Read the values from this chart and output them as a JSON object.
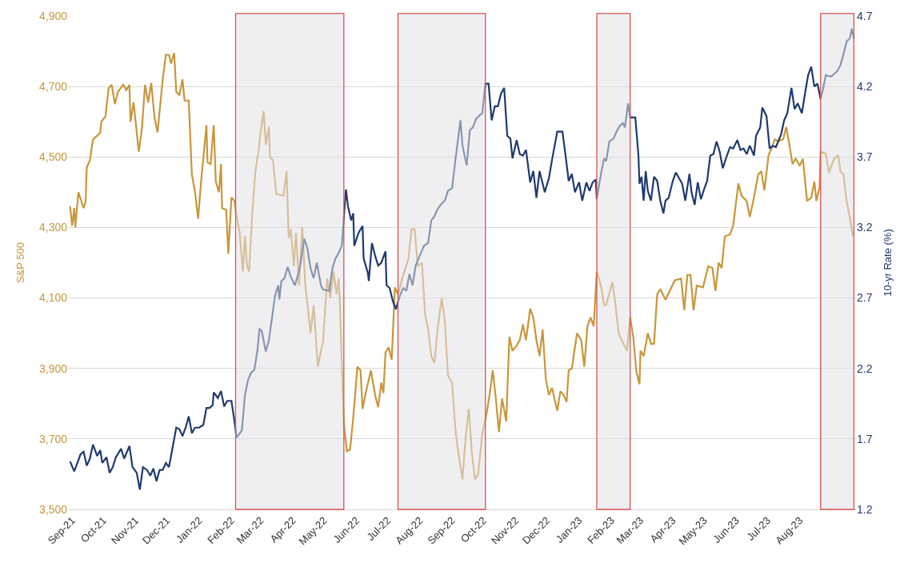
{
  "chart_data": {
    "type": "line",
    "ylabel": "S&P 500",
    "y2label": "10-yr Rate (%)",
    "xlim": [
      "2021-08-28",
      "2023-09-24"
    ],
    "xticks": [
      {
        "value": "2021-09-01",
        "label": "Sep-21"
      },
      {
        "value": "2021-10-01",
        "label": "Oct-21"
      },
      {
        "value": "2021-11-01",
        "label": "Nov-21"
      },
      {
        "value": "2021-12-01",
        "label": "Dec-21"
      },
      {
        "value": "2022-01-01",
        "label": "Jan-22"
      },
      {
        "value": "2022-02-01",
        "label": "Feb-22"
      },
      {
        "value": "2022-03-01",
        "label": "Mar-22"
      },
      {
        "value": "2022-04-01",
        "label": "Apr-22"
      },
      {
        "value": "2022-05-01",
        "label": "May-22"
      },
      {
        "value": "2022-06-01",
        "label": "Jun-22"
      },
      {
        "value": "2022-07-01",
        "label": "Jul-22"
      },
      {
        "value": "2022-08-01",
        "label": "Aug-22"
      },
      {
        "value": "2022-09-01",
        "label": "Sep-22"
      },
      {
        "value": "2022-10-01",
        "label": "Oct-22"
      },
      {
        "value": "2022-11-01",
        "label": "Nov-22"
      },
      {
        "value": "2022-12-01",
        "label": "Dec-22"
      },
      {
        "value": "2023-01-01",
        "label": "Jan-23"
      },
      {
        "value": "2023-02-01",
        "label": "Feb-23"
      },
      {
        "value": "2023-03-01",
        "label": "Mar-23"
      },
      {
        "value": "2023-04-01",
        "label": "Apr-23"
      },
      {
        "value": "2023-05-01",
        "label": "May-23"
      },
      {
        "value": "2023-06-01",
        "label": "Jun-23"
      },
      {
        "value": "2023-07-01",
        "label": "Jul-23"
      },
      {
        "value": "2023-08-01",
        "label": "Aug-23"
      }
    ],
    "ylim": [
      3500,
      4900
    ],
    "yticks": [
      {
        "value": 3500,
        "label": "3,500"
      },
      {
        "value": 3700,
        "label": "3,700"
      },
      {
        "value": 3900,
        "label": "3,900"
      },
      {
        "value": 4100,
        "label": "4,100"
      },
      {
        "value": 4300,
        "label": "4,300"
      },
      {
        "value": 4500,
        "label": "4,500"
      },
      {
        "value": 4700,
        "label": "4,700"
      },
      {
        "value": 4900,
        "label": "4,900"
      }
    ],
    "y2lim": [
      1.2,
      4.7
    ],
    "y2ticks": [
      1.2,
      1.7,
      2.2,
      2.7,
      3.2,
      3.7,
      4.2,
      4.7
    ],
    "grid": "y",
    "line_style": "solid",
    "bands": [
      {
        "axis": "x",
        "from": "2022-02-05",
        "to": "2022-05-20",
        "color": "#d9534f"
      },
      {
        "axis": "x",
        "from": "2022-07-11",
        "to": "2022-10-03",
        "color": "#d9534f"
      },
      {
        "axis": "x",
        "from": "2023-01-18",
        "to": "2023-02-19",
        "color": "#d9534f"
      },
      {
        "axis": "x",
        "from": "2023-08-21",
        "to": "2023-09-22",
        "color": "#d9534f"
      }
    ],
    "series": [
      {
        "color": "#c9963a",
        "x": [
          "2021-08-30",
          "2021-09-01",
          "2021-09-03",
          "2021-09-04",
          "2021-09-07",
          "2021-09-12",
          "2021-09-14",
          "2021-09-15",
          "2021-09-18",
          "2021-09-21",
          "2021-09-25",
          "2021-09-28",
          "2021-09-29",
          "2021-10-03",
          "2021-10-06",
          "2021-10-09",
          "2021-10-12",
          "2021-10-15",
          "2021-10-20",
          "2021-10-23",
          "2021-10-26",
          "2021-10-27",
          "2021-10-30",
          "2021-11-04",
          "2021-11-07",
          "2021-11-10",
          "2021-11-13",
          "2021-11-16",
          "2021-11-19",
          "2021-11-22",
          "2021-11-27",
          "2021-11-30",
          "2021-12-03",
          "2021-12-05",
          "2021-12-08",
          "2021-12-10",
          "2021-12-13",
          "2021-12-16",
          "2021-12-18",
          "2021-12-22",
          "2021-12-25",
          "2021-12-28",
          "2021-12-31",
          "2022-01-03",
          "2022-01-08",
          "2022-01-09",
          "2022-01-12",
          "2022-01-15",
          "2022-01-17",
          "2022-01-20",
          "2022-01-22",
          "2022-01-23",
          "2022-01-27",
          "2022-01-29",
          "2022-02-01",
          "2022-02-04",
          "2022-02-06",
          "2022-02-09",
          "2022-02-12",
          "2022-02-14",
          "2022-02-16",
          "2022-02-18",
          "2022-02-21",
          "2022-02-24",
          "2022-02-27",
          "2022-03-01",
          "2022-03-04",
          "2022-03-06",
          "2022-03-09",
          "2022-03-10",
          "2022-03-13",
          "2022-03-16",
          "2022-03-23",
          "2022-03-26",
          "2022-03-28",
          "2022-03-30",
          "2022-04-02",
          "2022-04-04",
          "2022-04-07",
          "2022-04-10",
          "2022-04-13",
          "2022-04-18",
          "2022-04-21",
          "2022-04-25",
          "2022-04-28",
          "2022-04-30",
          "2022-05-04",
          "2022-05-07",
          "2022-05-10",
          "2022-05-13",
          "2022-05-15",
          "2022-05-16",
          "2022-05-20",
          "2022-05-23",
          "2022-05-26",
          "2022-05-29",
          "2022-06-02",
          "2022-06-05",
          "2022-06-07",
          "2022-06-10",
          "2022-06-15",
          "2022-06-19",
          "2022-06-22",
          "2022-06-25",
          "2022-06-27",
          "2022-06-29",
          "2022-07-02",
          "2022-07-05",
          "2022-07-08",
          "2022-07-11",
          "2022-07-16",
          "2022-07-21",
          "2022-07-24",
          "2022-07-27",
          "2022-07-30",
          "2022-08-03",
          "2022-08-06",
          "2022-08-09",
          "2022-08-12",
          "2022-08-15",
          "2022-08-18",
          "2022-08-22",
          "2022-08-25",
          "2022-08-28",
          "2022-09-01",
          "2022-09-04",
          "2022-09-07",
          "2022-09-11",
          "2022-09-14",
          "2022-09-17",
          "2022-09-20",
          "2022-09-23",
          "2022-09-26",
          "2022-09-30",
          "2022-10-04",
          "2022-10-07",
          "2022-10-10",
          "2022-10-13",
          "2022-10-16",
          "2022-10-19",
          "2022-10-23",
          "2022-10-26",
          "2022-10-29",
          "2022-11-02",
          "2022-11-05",
          "2022-11-08",
          "2022-11-11",
          "2022-11-15",
          "2022-11-18",
          "2022-11-21",
          "2022-11-24",
          "2022-11-27",
          "2022-11-30",
          "2022-12-03",
          "2022-12-06",
          "2022-12-11",
          "2022-12-14",
          "2022-12-17",
          "2022-12-20",
          "2022-12-22",
          "2022-12-25",
          "2022-12-30",
          "2023-01-03",
          "2023-01-06",
          "2023-01-09",
          "2023-01-12",
          "2023-01-15",
          "2023-01-18",
          "2023-01-22",
          "2023-01-25",
          "2023-01-27",
          "2023-02-02",
          "2023-02-05",
          "2023-02-08",
          "2023-02-11",
          "2023-02-16",
          "2023-02-19",
          "2023-02-22",
          "2023-02-25",
          "2023-02-28",
          "2023-03-01",
          "2023-03-04",
          "2023-03-08",
          "2023-03-11",
          "2023-03-14",
          "2023-03-17",
          "2023-03-20",
          "2023-03-25",
          "2023-03-29",
          "2023-04-03",
          "2023-04-09",
          "2023-04-12",
          "2023-04-15",
          "2023-04-18",
          "2023-04-21",
          "2023-04-24",
          "2023-04-30",
          "2023-05-05",
          "2023-05-09",
          "2023-05-12",
          "2023-05-15",
          "2023-05-18",
          "2023-05-21",
          "2023-05-26",
          "2023-05-29",
          "2023-06-03",
          "2023-06-06",
          "2023-06-11",
          "2023-06-14",
          "2023-06-18",
          "2023-06-22",
          "2023-06-25",
          "2023-06-28",
          "2023-07-02",
          "2023-07-05",
          "2023-07-08",
          "2023-07-11",
          "2023-07-16",
          "2023-07-19",
          "2023-07-22",
          "2023-07-25",
          "2023-07-28",
          "2023-08-01",
          "2023-08-04",
          "2023-08-08",
          "2023-08-12",
          "2023-08-15",
          "2023-08-17",
          "2023-08-20",
          "2023-08-21",
          "2023-08-26",
          "2023-08-29",
          "2023-09-03",
          "2023-09-07",
          "2023-09-09",
          "2023-09-12",
          "2023-09-15",
          "2023-09-18",
          "2023-09-21"
        ],
        "values": [
          4360,
          4305,
          4355,
          4300,
          4400,
          4355,
          4375,
          4470,
          4490,
          4550,
          4560,
          4570,
          4600,
          4615,
          4695,
          4705,
          4650,
          4685,
          4705,
          4690,
          4705,
          4600,
          4655,
          4515,
          4580,
          4705,
          4655,
          4710,
          4615,
          4570,
          4720,
          4790,
          4790,
          4765,
          4795,
          4685,
          4675,
          4720,
          4660,
          4660,
          4450,
          4400,
          4325,
          4435,
          4590,
          4485,
          4480,
          4590,
          4430,
          4400,
          4480,
          4355,
          4350,
          4225,
          4385,
          4375,
          4330,
          4285,
          4175,
          4275,
          4190,
          4175,
          4340,
          4460,
          4515,
          4570,
          4630,
          4535,
          4585,
          4500,
          4490,
          4395,
          4390,
          4460,
          4270,
          4295,
          4190,
          4285,
          4135,
          4300,
          4135,
          4000,
          4080,
          3905,
          3950,
          3975,
          4155,
          4100,
          4175,
          4110,
          4155,
          4100,
          3740,
          3665,
          3670,
          3760,
          3905,
          3895,
          3785,
          3830,
          3895,
          3825,
          3790,
          3860,
          3830,
          3945,
          3960,
          3925,
          4130,
          4110,
          4165,
          4210,
          4295,
          4295,
          4190,
          4200,
          4055,
          4010,
          3935,
          3915,
          4010,
          4100,
          4035,
          3880,
          3860,
          3730,
          3660,
          3585,
          3705,
          3785,
          3660,
          3585,
          3600,
          3715,
          3770,
          3825,
          3895,
          3815,
          3720,
          3815,
          3750,
          3990,
          3950,
          3965,
          3980,
          4025,
          3980,
          4070,
          4045,
          3980,
          3935,
          4010,
          3870,
          3825,
          3845,
          3780,
          3835,
          3825,
          3805,
          3895,
          3900,
          4000,
          3980,
          3905,
          4020,
          4045,
          4020,
          4175,
          4135,
          4080,
          4080,
          4145,
          4080,
          4000,
          3980,
          3950,
          4045,
          3990,
          3890,
          3855,
          3950,
          3935,
          4000,
          3970,
          3970,
          4110,
          4125,
          4095,
          4120,
          4150,
          4155,
          4065,
          4165,
          4165,
          4065,
          4135,
          4130,
          4190,
          4185,
          4120,
          4200,
          4185,
          4275,
          4280,
          4305,
          4425,
          4390,
          4375,
          4330,
          4385,
          4450,
          4460,
          4405,
          4505,
          4525,
          4550,
          4545,
          4550,
          4585,
          4535,
          4480,
          4495,
          4475,
          4495,
          4375,
          4385,
          4430,
          4375,
          4415,
          4515,
          4510,
          4455,
          4495,
          4505,
          4460,
          4450,
          4375,
          4330,
          4275
        ]
      },
      {
        "axis": "y2",
        "color": "#1f3a6e",
        "x": [
          "2021-08-30",
          "2021-09-03",
          "2021-09-06",
          "2021-09-09",
          "2021-09-12",
          "2021-09-15",
          "2021-09-18",
          "2021-09-21",
          "2021-09-25",
          "2021-09-28",
          "2021-09-30",
          "2021-10-04",
          "2021-10-07",
          "2021-10-10",
          "2021-10-13",
          "2021-10-18",
          "2021-10-21",
          "2021-10-26",
          "2021-10-29",
          "2021-11-02",
          "2021-11-05",
          "2021-11-08",
          "2021-11-12",
          "2021-11-15",
          "2021-11-18",
          "2021-11-21",
          "2021-11-24",
          "2021-11-27",
          "2021-11-30",
          "2021-12-03",
          "2021-12-06",
          "2021-12-10",
          "2021-12-13",
          "2021-12-16",
          "2021-12-19",
          "2021-12-22",
          "2021-12-25",
          "2021-12-28",
          "2022-01-01",
          "2022-01-05",
          "2022-01-08",
          "2022-01-11",
          "2022-01-14",
          "2022-01-15",
          "2022-01-19",
          "2022-01-22",
          "2022-01-25",
          "2022-01-28",
          "2022-02-01",
          "2022-02-04",
          "2022-02-06",
          "2022-02-09",
          "2022-02-11",
          "2022-02-14",
          "2022-02-17",
          "2022-02-20",
          "2022-02-23",
          "2022-02-26",
          "2022-02-28",
          "2022-03-02",
          "2022-03-06",
          "2022-03-09",
          "2022-03-12",
          "2022-03-15",
          "2022-03-18",
          "2022-03-19",
          "2022-03-21",
          "2022-03-24",
          "2022-03-27",
          "2022-03-30",
          "2022-04-03",
          "2022-04-05",
          "2022-04-08",
          "2022-04-12",
          "2022-04-15",
          "2022-04-18",
          "2022-04-21",
          "2022-04-24",
          "2022-04-28",
          "2022-04-30",
          "2022-05-06",
          "2022-05-09",
          "2022-05-12",
          "2022-05-15",
          "2022-05-18",
          "2022-05-22",
          "2022-05-24",
          "2022-05-27",
          "2022-05-29",
          "2022-05-30",
          "2022-06-03",
          "2022-06-07",
          "2022-06-08",
          "2022-06-12",
          "2022-06-13",
          "2022-06-16",
          "2022-06-19",
          "2022-06-22",
          "2022-06-25",
          "2022-06-29",
          "2022-06-30",
          "2022-07-03",
          "2022-07-06",
          "2022-07-09",
          "2022-07-13",
          "2022-07-16",
          "2022-07-19",
          "2022-07-22",
          "2022-07-25",
          "2022-07-28",
          "2022-08-01",
          "2022-08-05",
          "2022-08-09",
          "2022-08-12",
          "2022-08-15",
          "2022-08-18",
          "2022-08-22",
          "2022-08-25",
          "2022-08-28",
          "2022-09-01",
          "2022-09-04",
          "2022-09-09",
          "2022-09-11",
          "2022-09-15",
          "2022-09-18",
          "2022-09-21",
          "2022-09-24",
          "2022-09-28",
          "2022-09-30",
          "2022-10-03",
          "2022-10-06",
          "2022-10-09",
          "2022-10-12",
          "2022-10-15",
          "2022-10-18",
          "2022-10-21",
          "2022-10-24",
          "2022-10-27",
          "2022-10-29",
          "2022-11-02",
          "2022-11-05",
          "2022-11-08",
          "2022-11-11",
          "2022-11-15",
          "2022-11-18",
          "2022-11-21",
          "2022-11-24",
          "2022-11-29",
          "2022-12-03",
          "2022-12-06",
          "2022-12-11",
          "2022-12-16",
          "2022-12-19",
          "2022-12-22",
          "2022-12-25",
          "2022-12-28",
          "2023-01-01",
          "2023-01-04",
          "2023-01-08",
          "2023-01-11",
          "2023-01-14",
          "2023-01-17",
          "2023-01-18",
          "2023-01-22",
          "2023-01-25",
          "2023-01-27",
          "2023-01-30",
          "2023-02-03",
          "2023-02-06",
          "2023-02-09",
          "2023-02-12",
          "2023-02-14",
          "2023-02-17",
          "2023-02-19",
          "2023-02-24",
          "2023-02-27",
          "2023-02-28",
          "2023-03-02",
          "2023-03-04",
          "2023-03-06",
          "2023-03-08",
          "2023-03-11",
          "2023-03-14",
          "2023-03-17",
          "2023-03-20",
          "2023-03-23",
          "2023-03-25",
          "2023-03-28",
          "2023-04-01",
          "2023-04-04",
          "2023-04-07",
          "2023-04-10",
          "2023-04-13",
          "2023-04-17",
          "2023-04-19",
          "2023-04-22",
          "2023-04-25",
          "2023-04-28",
          "2023-05-01",
          "2023-05-04",
          "2023-05-07",
          "2023-05-10",
          "2023-05-13",
          "2023-05-16",
          "2023-05-19",
          "2023-05-23",
          "2023-05-26",
          "2023-05-29",
          "2023-06-02",
          "2023-06-05",
          "2023-06-08",
          "2023-06-11",
          "2023-06-14",
          "2023-06-18",
          "2023-06-20",
          "2023-06-24",
          "2023-06-26",
          "2023-06-30",
          "2023-07-03",
          "2023-07-06",
          "2023-07-09",
          "2023-07-14",
          "2023-07-17",
          "2023-07-20",
          "2023-07-24",
          "2023-07-27",
          "2023-07-30",
          "2023-08-03",
          "2023-08-06",
          "2023-08-09",
          "2023-08-12",
          "2023-08-15",
          "2023-08-18",
          "2023-08-21",
          "2023-08-23",
          "2023-08-26",
          "2023-08-31",
          "2023-09-06",
          "2023-09-09",
          "2023-09-12",
          "2023-09-15",
          "2023-09-18",
          "2023-09-20",
          "2023-09-22"
        ],
        "values": [
          1.54,
          1.47,
          1.53,
          1.59,
          1.61,
          1.51,
          1.56,
          1.66,
          1.58,
          1.62,
          1.53,
          1.57,
          1.46,
          1.5,
          1.57,
          1.63,
          1.56,
          1.65,
          1.5,
          1.46,
          1.34,
          1.5,
          1.48,
          1.44,
          1.49,
          1.4,
          1.48,
          1.48,
          1.53,
          1.5,
          1.62,
          1.78,
          1.77,
          1.72,
          1.78,
          1.86,
          1.74,
          1.78,
          1.78,
          1.8,
          1.92,
          1.92,
          1.94,
          2.03,
          1.99,
          2.04,
          1.93,
          1.97,
          1.97,
          1.82,
          1.71,
          1.74,
          1.76,
          2.01,
          2.12,
          2.17,
          2.19,
          2.33,
          2.48,
          2.47,
          2.32,
          2.4,
          2.56,
          2.72,
          2.79,
          2.69,
          2.82,
          2.84,
          2.92,
          2.85,
          2.79,
          2.84,
          2.93,
          3.12,
          3.05,
          2.91,
          2.84,
          2.95,
          2.79,
          2.76,
          2.75,
          2.91,
          2.98,
          3.02,
          3.07,
          3.47,
          3.35,
          3.25,
          3.3,
          3.07,
          3.16,
          3.21,
          2.98,
          2.88,
          2.82,
          3.09,
          3.0,
          2.93,
          2.95,
          3.03,
          2.79,
          2.77,
          2.68,
          2.62,
          2.72,
          2.77,
          2.75,
          2.87,
          2.79,
          2.93,
          3.0,
          3.07,
          3.09,
          3.25,
          3.28,
          3.33,
          3.37,
          3.39,
          3.46,
          3.48,
          3.67,
          3.96,
          3.78,
          3.64,
          3.89,
          3.91,
          3.97,
          4.0,
          4.01,
          4.22,
          4.22,
          3.96,
          4.06,
          4.06,
          4.15,
          4.19,
          3.85,
          3.83,
          3.69,
          3.82,
          3.72,
          3.71,
          3.75,
          3.52,
          3.6,
          3.41,
          3.6,
          3.45,
          3.55,
          3.68,
          3.88,
          3.88,
          3.71,
          3.53,
          3.58,
          3.45,
          3.52,
          3.39,
          3.52,
          3.46,
          3.52,
          3.54,
          3.4,
          3.58,
          3.69,
          3.67,
          3.81,
          3.83,
          3.88,
          3.92,
          3.94,
          3.91,
          4.08,
          3.98,
          3.98,
          3.71,
          3.51,
          3.56,
          3.39,
          3.6,
          3.46,
          3.39,
          3.56,
          3.53,
          3.39,
          3.3,
          3.39,
          3.41,
          3.53,
          3.59,
          3.55,
          3.51,
          3.39,
          3.58,
          3.45,
          3.36,
          3.52,
          3.4,
          3.47,
          3.53,
          3.71,
          3.72,
          3.81,
          3.74,
          3.62,
          3.71,
          3.77,
          3.76,
          3.82,
          3.75,
          3.76,
          3.72,
          3.78,
          3.71,
          3.85,
          3.91,
          4.05,
          3.99,
          3.76,
          3.78,
          3.77,
          3.86,
          3.96,
          4.01,
          4.19,
          4.04,
          4.08,
          4.01,
          4.15,
          4.28,
          4.34,
          4.2,
          4.22,
          4.11,
          4.17,
          4.28,
          4.27,
          4.31,
          4.35,
          4.43,
          4.52,
          4.54,
          4.61,
          4.54
        ]
      }
    ]
  }
}
